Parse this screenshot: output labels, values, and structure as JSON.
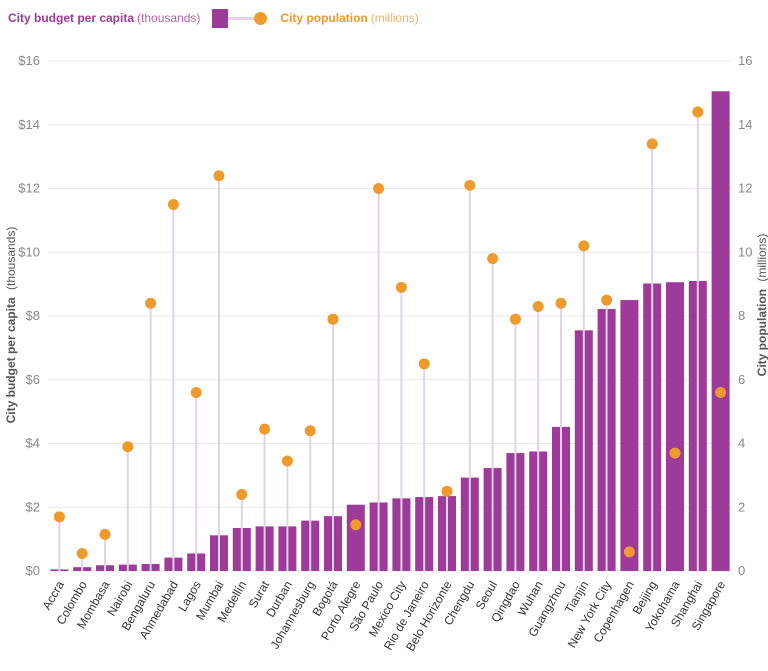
{
  "legend": {
    "budget_label": "City budget per capita",
    "budget_unit": "(thousands)",
    "pop_label": "City population",
    "pop_unit": "(millions)"
  },
  "colors": {
    "bar": "#9e3a99",
    "dot": "#ef9a2c",
    "stem": "#e3d3e8",
    "grid": "#e8e8e8",
    "tick_text": "#888888",
    "axis_title": "#555555"
  },
  "chart_data": {
    "type": "bar",
    "categories": [
      "Accra",
      "Colombo",
      "Mombasa",
      "Nairobi",
      "Bengaluru",
      "Ahmedabad",
      "Lagos",
      "Mumbai",
      "Medellín",
      "Surat",
      "Durban",
      "Johannesburg",
      "Bogotá",
      "Porto Alegre",
      "São Paulo",
      "Mexico City",
      "Rio de Janeiro",
      "Belo Horizonte",
      "Chengdu",
      "Seoul",
      "Qingdao",
      "Wuhan",
      "Guangzhou",
      "Tianjin",
      "New York City",
      "Copenhagen",
      "Beijing",
      "Yokohama",
      "Shanghai",
      "Singapore"
    ],
    "series": [
      {
        "name": "City budget per capita",
        "axis": "left",
        "values": [
          0.05,
          0.12,
          0.18,
          0.2,
          0.22,
          0.42,
          0.55,
          1.12,
          1.35,
          1.4,
          1.4,
          1.58,
          1.72,
          2.08,
          2.15,
          2.28,
          2.32,
          2.35,
          2.93,
          3.23,
          3.7,
          3.75,
          4.52,
          7.55,
          8.22,
          8.5,
          9.02,
          9.06,
          9.1,
          15.05
        ]
      },
      {
        "name": "City population",
        "axis": "right",
        "values": [
          1.7,
          0.55,
          1.15,
          3.9,
          8.4,
          11.5,
          5.6,
          12.4,
          2.4,
          4.45,
          3.45,
          4.4,
          7.9,
          1.45,
          12.0,
          8.9,
          6.5,
          2.5,
          12.1,
          9.8,
          7.9,
          8.3,
          8.4,
          10.2,
          8.5,
          0.6,
          13.4,
          3.7,
          14.4,
          5.6
        ]
      }
    ],
    "ylabel": "City budget per capita",
    "ylabel_unit": "(thousands)",
    "ylabel_right": "City population",
    "ylabel_right_unit": "(millions)",
    "ylim": [
      0,
      16
    ],
    "ylim_right": [
      0,
      16
    ],
    "yticks": [
      "$0",
      "$2",
      "$4",
      "$6",
      "$8",
      "$10",
      "$12",
      "$14",
      "$16"
    ],
    "yticks_right": [
      "0",
      "2",
      "4",
      "6",
      "8",
      "10",
      "12",
      "14",
      "16"
    ],
    "grid": true,
    "legend_position": "top-left"
  }
}
